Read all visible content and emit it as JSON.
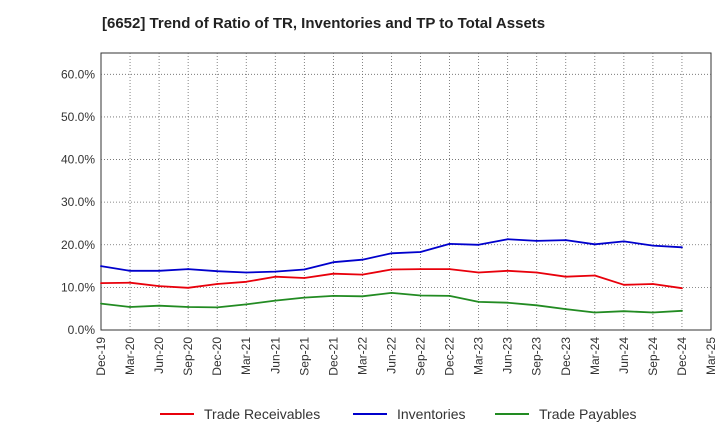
{
  "chart_data": {
    "type": "line",
    "title": "[6652]  Trend of Ratio of TR, Inventories and TP to Total Assets",
    "xlabel": "",
    "ylabel": "",
    "x": [
      "Dec-19",
      "Mar-20",
      "Jun-20",
      "Sep-20",
      "Dec-20",
      "Mar-21",
      "Jun-21",
      "Sep-21",
      "Dec-21",
      "Mar-22",
      "Jun-22",
      "Sep-22",
      "Dec-22",
      "Mar-23",
      "Jun-23",
      "Sep-23",
      "Dec-23",
      "Mar-24",
      "Jun-24",
      "Sep-24",
      "Dec-24"
    ],
    "x_ticks": [
      "Dec-19",
      "Mar-20",
      "Jun-20",
      "Sep-20",
      "Dec-20",
      "Mar-21",
      "Jun-21",
      "Sep-21",
      "Dec-21",
      "Mar-22",
      "Jun-22",
      "Sep-22",
      "Dec-22",
      "Mar-23",
      "Jun-23",
      "Sep-23",
      "Dec-23",
      "Mar-24",
      "Jun-24",
      "Sep-24",
      "Dec-24",
      "Mar-25"
    ],
    "y_ticks": [
      "0.0%",
      "10.0%",
      "20.0%",
      "30.0%",
      "40.0%",
      "50.0%",
      "60.0%"
    ],
    "ylim": [
      0,
      65
    ],
    "grid": true,
    "legend_position": "bottom",
    "series": [
      {
        "name": "Trade Receivables",
        "color": "#e8000b",
        "values": [
          11.0,
          11.1,
          10.3,
          9.9,
          10.8,
          11.3,
          12.5,
          12.2,
          13.2,
          13.0,
          14.2,
          14.3,
          14.3,
          13.5,
          13.9,
          13.5,
          12.5,
          12.8,
          10.6,
          10.8,
          9.8
        ]
      },
      {
        "name": "Inventories",
        "color": "#0000cc",
        "values": [
          15.0,
          13.9,
          13.9,
          14.3,
          13.8,
          13.5,
          13.7,
          14.2,
          15.9,
          16.5,
          18.0,
          18.3,
          20.2,
          20.0,
          21.3,
          20.9,
          21.1,
          20.1,
          20.8,
          19.8,
          19.4
        ]
      },
      {
        "name": "Trade Payables",
        "color": "#228b22",
        "values": [
          6.2,
          5.4,
          5.7,
          5.4,
          5.3,
          6.0,
          6.9,
          7.6,
          8.0,
          7.9,
          8.7,
          8.1,
          8.0,
          6.6,
          6.4,
          5.8,
          4.9,
          4.1,
          4.4,
          4.1,
          4.5
        ]
      }
    ]
  }
}
